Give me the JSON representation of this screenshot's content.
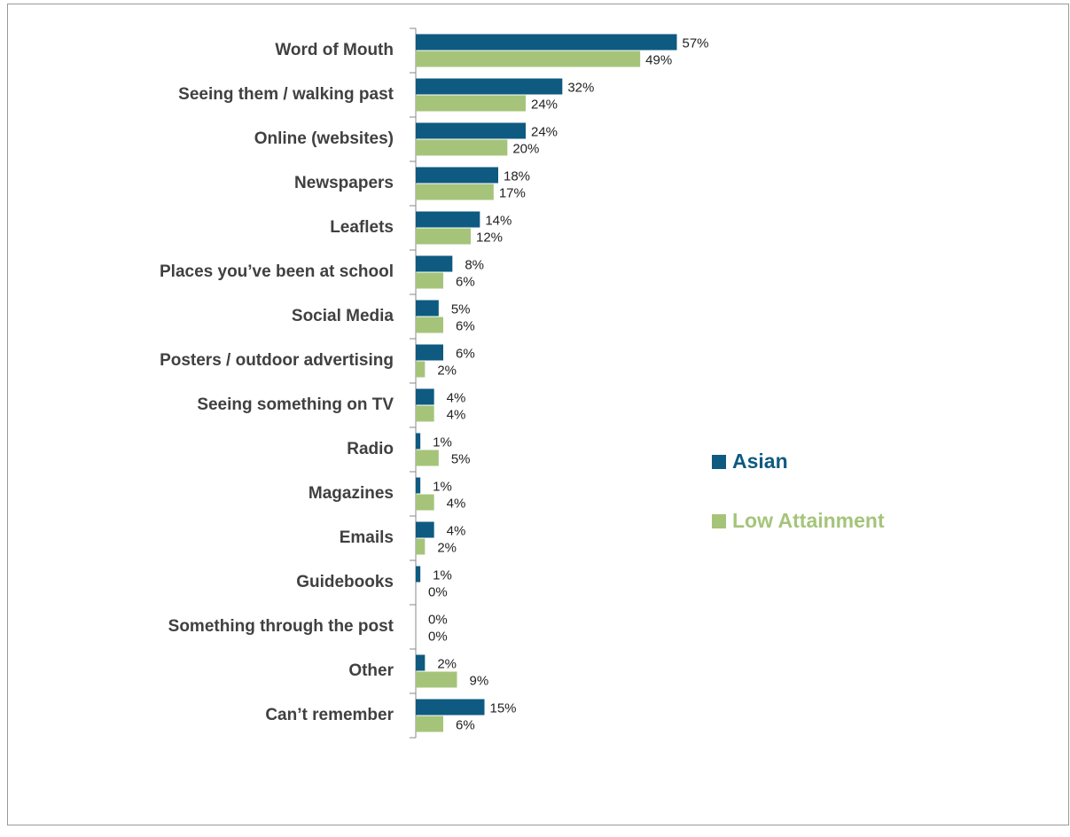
{
  "chart_data": {
    "type": "bar",
    "orientation": "horizontal",
    "categories": [
      "Word of Mouth",
      "Seeing them / walking past",
      "Online (websites)",
      "Newspapers",
      "Leaflets",
      "Places you’ve been at school",
      "Social Media",
      "Posters / outdoor advertising",
      "Seeing something on TV",
      "Radio",
      "Magazines",
      "Emails",
      "Guidebooks",
      "Something through the post",
      "Other",
      "Can’t remember"
    ],
    "series": [
      {
        "name": "Asian",
        "color": "#0f5a80",
        "values": [
          57,
          32,
          24,
          18,
          14,
          8,
          5,
          6,
          4,
          1,
          1,
          4,
          1,
          0,
          2,
          15
        ],
        "value_labels": [
          "57%",
          "32%",
          "24%",
          "18%",
          "14%",
          "8%",
          "5%",
          "6%",
          "4%",
          "1%",
          "1%",
          "4%",
          "1%",
          "0%",
          "2%",
          "15%"
        ]
      },
      {
        "name": "Low Attainment",
        "color": "#a5c47a",
        "values": [
          49,
          24,
          20,
          17,
          12,
          6,
          6,
          2,
          4,
          5,
          4,
          2,
          0,
          0,
          9,
          6
        ],
        "value_labels": [
          "49%",
          "24%",
          "20%",
          "17%",
          "12%",
          "6%",
          "6%",
          "2%",
          "4%",
          "5%",
          "4%",
          "2%",
          "0%",
          "0%",
          "9%",
          "6%"
        ]
      }
    ],
    "xlim": [
      0,
      60
    ],
    "legend": "right"
  }
}
